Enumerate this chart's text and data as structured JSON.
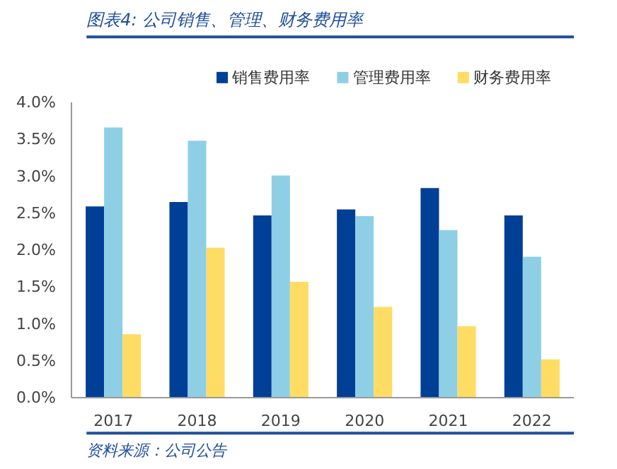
{
  "chart_data": {
    "type": "bar",
    "title": "图表4: 公司销售、管理、财务费用率",
    "categories": [
      "2017",
      "2018",
      "2019",
      "2020",
      "2021",
      "2022"
    ],
    "series": [
      {
        "name": "销售费用率",
        "color": "#003f96",
        "values": [
          2.59,
          2.65,
          2.47,
          2.55,
          2.84,
          2.47
        ]
      },
      {
        "name": "管理费用率",
        "color": "#8ecfe6",
        "values": [
          3.66,
          3.48,
          3.01,
          2.46,
          2.27,
          1.91
        ]
      },
      {
        "name": "财务费用率",
        "color": "#ffdc64",
        "values": [
          0.86,
          2.03,
          1.57,
          1.23,
          0.97,
          0.52
        ]
      }
    ],
    "ylim": [
      0,
      4
    ],
    "yticks": [
      {
        "value": 0,
        "label": "0.0%"
      },
      {
        "value": 0.5,
        "label": "0.5%"
      },
      {
        "value": 1,
        "label": "1.0%"
      },
      {
        "value": 1.5,
        "label": "1.5%"
      },
      {
        "value": 2,
        "label": "2.0%"
      },
      {
        "value": 2.5,
        "label": "2.5%"
      },
      {
        "value": 3,
        "label": "3.0%"
      },
      {
        "value": 3.5,
        "label": "3.5%"
      },
      {
        "value": 4,
        "label": "4.0%"
      }
    ],
    "grid": false,
    "legend": "top",
    "annotations": [
      "资料来源：公司公告"
    ]
  }
}
